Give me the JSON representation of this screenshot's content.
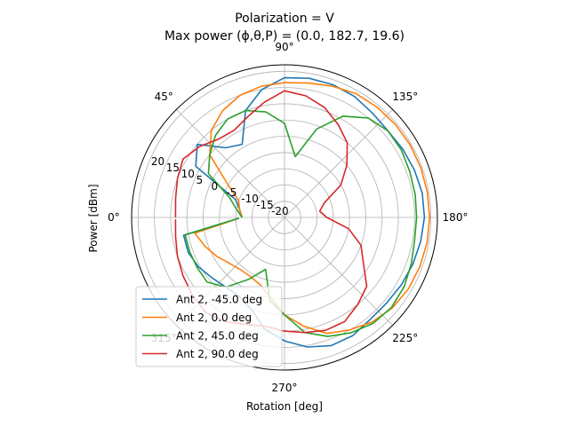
{
  "chart_data": {
    "type": "line",
    "projection": "polar",
    "title_line1": "Polarization = V",
    "title_line2": "Max power (ϕ,θ,P) = (0.0, 182.7, 19.6)",
    "xlabel": "Rotation [deg]",
    "ylabel": "Power [dBm]",
    "theta_direction": "clockwise",
    "theta_zero_location": "left",
    "angle_ticks": [
      {
        "deg": 0,
        "label": "0°"
      },
      {
        "deg": 45,
        "label": "45°"
      },
      {
        "deg": 90,
        "label": "90°"
      },
      {
        "deg": 135,
        "label": "135°"
      },
      {
        "deg": 180,
        "label": "180°"
      },
      {
        "deg": 225,
        "label": "225°"
      },
      {
        "deg": 270,
        "label": "270°"
      },
      {
        "deg": 315,
        "label": "315°"
      }
    ],
    "rlim": [
      -25,
      22
    ],
    "radial_ticks": [
      -20,
      -15,
      -10,
      -5,
      0,
      5,
      10,
      15,
      20
    ],
    "radial_tick_labels": [
      "-20",
      "-15",
      "-10",
      "-5",
      "0",
      "5",
      "10",
      "15",
      "20"
    ],
    "grid": true,
    "legend_position": "lower-left",
    "series": [
      {
        "name": "Ant 2, -45.0 deg",
        "color": "#1f77b4",
        "theta": [
          0,
          10,
          20,
          30,
          40,
          50,
          60,
          70,
          80,
          90,
          100,
          110,
          120,
          130,
          140,
          150,
          160,
          170,
          180,
          190,
          200,
          210,
          220,
          230,
          240,
          250,
          260,
          270,
          280,
          290,
          300,
          310,
          320,
          330,
          340,
          350,
          359
        ],
        "r": [
          -12,
          -11,
          -9,
          6.5,
          10,
          3,
          1,
          10,
          15,
          18,
          18.5,
          18.5,
          18,
          17,
          16.5,
          17,
          17.5,
          18,
          18,
          17.5,
          17,
          16.5,
          16,
          16,
          17,
          17,
          15.5,
          13,
          10,
          5,
          3,
          3,
          4,
          5.5,
          6.5,
          6.5,
          -11
        ]
      },
      {
        "name": "Ant 2, 0.0 deg",
        "color": "#ff7f0e",
        "theta": [
          0,
          10,
          20,
          30,
          40,
          50,
          60,
          70,
          80,
          90,
          100,
          110,
          120,
          130,
          140,
          150,
          160,
          170,
          180,
          190,
          200,
          210,
          220,
          230,
          240,
          250,
          260,
          270,
          280,
          290,
          300,
          310,
          320,
          330,
          340,
          350,
          359
        ],
        "r": [
          -12,
          -11,
          -10,
          -5,
          5,
          10,
          13,
          15,
          16,
          16.5,
          17,
          18,
          19,
          19.3,
          19.5,
          19.6,
          19.6,
          19.6,
          19.6,
          19.5,
          19.3,
          19,
          18.3,
          17,
          15,
          13,
          9,
          5,
          0,
          -3,
          -4,
          -4,
          -3,
          -1,
          1,
          3,
          -11
        ]
      },
      {
        "name": "Ant 2, 45.0 deg",
        "color": "#2ca02c",
        "theta": [
          0,
          10,
          20,
          30,
          40,
          50,
          60,
          70,
          80,
          90,
          100,
          110,
          120,
          130,
          140,
          150,
          160,
          170,
          180,
          190,
          200,
          210,
          220,
          230,
          240,
          250,
          260,
          270,
          280,
          290,
          300,
          310,
          320,
          330,
          340,
          350,
          359
        ],
        "r": [
          -12,
          -10,
          -7,
          2,
          5,
          8,
          10,
          10,
          8,
          4,
          -6,
          4,
          11,
          15,
          16.5,
          16.5,
          16,
          15.8,
          15.6,
          15.6,
          16.5,
          17.5,
          18,
          17.5,
          16,
          14,
          11,
          5,
          1,
          -8,
          -3,
          3,
          6,
          6,
          6,
          6,
          -11
        ]
      },
      {
        "name": "Ant 2, 90.0 deg",
        "color": "#d62728",
        "theta": [
          0,
          10,
          20,
          30,
          40,
          50,
          60,
          70,
          80,
          90,
          100,
          110,
          120,
          130,
          140,
          150,
          160,
          170,
          180,
          190,
          200,
          210,
          220,
          230,
          240,
          250,
          260,
          270,
          280,
          290,
          300,
          310,
          320,
          330,
          340,
          350,
          359
        ],
        "r": [
          8.5,
          9,
          10,
          11,
          9,
          6.5,
          6,
          8,
          11,
          14,
          13,
          11,
          8,
          5,
          0,
          -5,
          -12,
          -14,
          -12,
          -5,
          0,
          3,
          8,
          10,
          12,
          12,
          11,
          10,
          9,
          10,
          12,
          13,
          12,
          11,
          10,
          9,
          8.5
        ]
      }
    ]
  }
}
